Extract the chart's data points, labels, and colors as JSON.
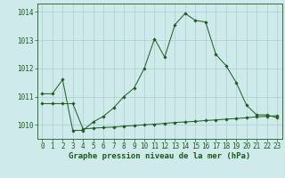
{
  "background_color": "#ceeaea",
  "grid_color": "#aacece",
  "line_color": "#1a5c1a",
  "marker_color": "#1a5c1a",
  "x_values": [
    0,
    1,
    2,
    3,
    4,
    5,
    6,
    7,
    8,
    9,
    10,
    11,
    12,
    13,
    14,
    15,
    16,
    17,
    18,
    19,
    20,
    21,
    22,
    23
  ],
  "y_main": [
    1011.1,
    1011.1,
    1011.6,
    1009.8,
    1009.8,
    1010.1,
    1010.3,
    1010.6,
    1011.0,
    1011.3,
    1012.0,
    1013.05,
    1012.4,
    1013.55,
    1013.95,
    1013.7,
    1013.65,
    1012.5,
    1012.1,
    1011.5,
    1010.7,
    1010.35,
    1010.35,
    1010.25
  ],
  "y_flat": [
    1010.75,
    1010.75,
    1010.75,
    1010.75,
    1009.85,
    1009.88,
    1009.9,
    1009.92,
    1009.95,
    1009.97,
    1010.0,
    1010.02,
    1010.05,
    1010.08,
    1010.1,
    1010.12,
    1010.15,
    1010.17,
    1010.2,
    1010.22,
    1010.25,
    1010.28,
    1010.3,
    1010.32
  ],
  "ylim": [
    1009.5,
    1014.3
  ],
  "yticks": [
    1010,
    1011,
    1012,
    1013,
    1014
  ],
  "xticks": [
    0,
    1,
    2,
    3,
    4,
    5,
    6,
    7,
    8,
    9,
    10,
    11,
    12,
    13,
    14,
    15,
    16,
    17,
    18,
    19,
    20,
    21,
    22,
    23
  ],
  "xlabel": "Graphe pression niveau de la mer (hPa)",
  "tick_fontsize": 5.5,
  "xlabel_fontsize": 6.5
}
